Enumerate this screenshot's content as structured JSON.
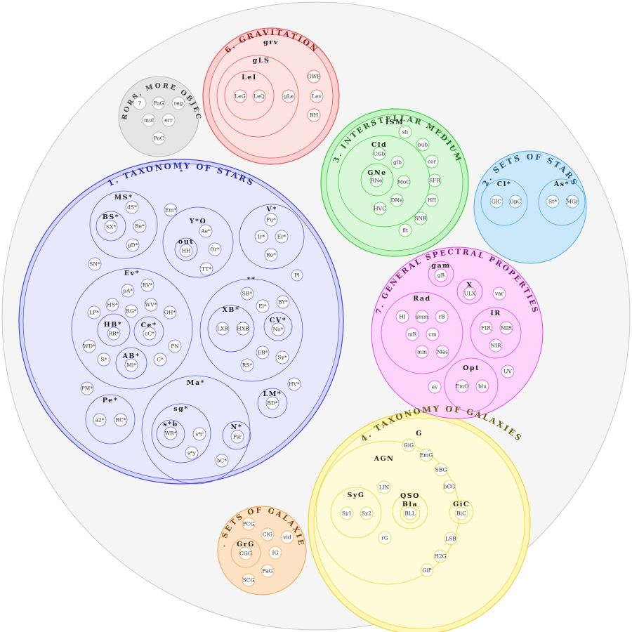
{
  "groups": [
    {
      "key": "stars",
      "title": "1. TAXONOMY OF STARS",
      "root": "*",
      "color": "#3b3bd6",
      "fill": "#e6e6fb"
    },
    {
      "key": "setstars",
      "title": "2. SETS OF STARS",
      "color": "#4ca8e8",
      "fill": "#cde9fb"
    },
    {
      "key": "ism",
      "title": "3. INTERSTELLAR MEDIUM",
      "root": "ISM",
      "color": "#3dcc3d",
      "fill": "#d8f8d8"
    },
    {
      "key": "gal",
      "title": "4. TAXONOMY OF GALAXIES",
      "root": "G",
      "color": "#e8d83a",
      "fill": "#fffad0"
    },
    {
      "key": "setgal",
      "title": "5. SETS OF GALAXIES",
      "color": "#eea050",
      "fill": "#fde6cc"
    },
    {
      "key": "grav",
      "title": "6. GRAVITATION",
      "root": "grv",
      "color": "#e25a5a",
      "fill": "#fde0e0"
    },
    {
      "key": "spec",
      "title": "7. GENERAL SPECTRAL PROPERTIES",
      "color": "#dd4ddd",
      "fill": "#fbd7fb"
    },
    {
      "key": "err",
      "title": "ERRORS, MORE OBJECTS",
      "color": "#999999",
      "fill": "#e8e8e8"
    }
  ],
  "subgroups": {
    "MS": "MS*",
    "YO": "Y*O",
    "V": "V*",
    "Ev": "Ev*",
    "DoubleStar": "**",
    "Ma": "Ma*",
    "Pe": "Pe*",
    "BS": "BS*",
    "out": "out",
    "HB": "HB*",
    "Ce": "Ce*",
    "AB": "AB*",
    "XB": "XB*",
    "CV": "CV*",
    "LM": "LM*",
    "sg": "sg*",
    "sb": "s*b",
    "N": "N*",
    "Cld": "Cld",
    "GNe": "GNe",
    "Cl": "Cl*",
    "As": "As*",
    "gLS": "gLS",
    "Le": "LeI",
    "gam": "gam",
    "X": "X",
    "Rad": "Rad",
    "IR": "IR",
    "Opt": "Opt",
    "AGN": "AGN",
    "SyG": "SyG",
    "QSO": "QSO",
    "Bla": "Bla",
    "GiC": "GiC",
    "GrG": "GrG"
  },
  "leaves": {
    "dS": "dS*",
    "SX": "SX*",
    "Be": "Be*",
    "gD": "gD*",
    "Em": "Em*",
    "Ae": "Ae*",
    "Or": "Or*",
    "HH": "HH",
    "TT": "TT*",
    "Pu": "Pu*",
    "Ir": "Ir*",
    "Er": "Er*",
    "Ro": "Ro*",
    "SN": "SN*",
    "Pl": "Pl",
    "pA": "pA*",
    "RV": "RV*",
    "HS": "HS*",
    "RG": "RG*",
    "WV": "WV*",
    "LP": "LP*",
    "OH": "OH*",
    "RR": "RR*",
    "cC": "cC*",
    "WD": "WD*",
    "PN": "PN",
    "S": "S*",
    "Mi": "Mi*",
    "C": "C*",
    "SB": "SB*",
    "BY": "BY*",
    "El": "El*",
    "LXB": "LXB",
    "HXB": "HXB",
    "No": "No*",
    "EB": "EB*",
    "RS": "RS*",
    "Sy": "Sy*",
    "PM": "PM*",
    "HV": "HV*",
    "BD": "BD*",
    "a2": "a2*",
    "RC": "RC*",
    "WR": "WR*",
    "sr": "s*r",
    "sy": "s*y",
    "Psr": "Psr",
    "bC": "bC*",
    "GlC": "GlC",
    "OpC": "OpC",
    "St": "St*",
    "MGr": "MGr",
    "sh": "sh",
    "bub": "bub",
    "CGb": "CGb",
    "glb": "glb",
    "cor": "cor",
    "RNe": "RNe",
    "MoC": "MoC",
    "SFR": "SFR",
    "DNe": "DNe",
    "HII": "HII",
    "HVC": "HVC",
    "SNR": "SNR",
    "flt": "flt",
    "GiG": "GiG",
    "EmG": "EmG",
    "SBG": "SBG",
    "LIN": "LIN",
    "bCG": "bCG",
    "Sy1": "Sy1",
    "Sy2": "Sy2",
    "BLL": "BLL",
    "BiC": "BiC",
    "rG": "rG",
    "LSB": "LSB",
    "H2G": "H2G",
    "GiP": "GiP",
    "PCG": "PCG",
    "ClG": "ClG",
    "vid": "vid",
    "CGG": "CGG",
    "IG": "IG",
    "PaG": "PaG",
    "SCG": "SCG",
    "LeG": "LeG",
    "LeQ": "LeQ",
    "gLe": "gLe",
    "GWE": "GWE",
    "Lev": "Lev",
    "BH": "BH",
    "gB": "gB",
    "ULX": "ULX",
    "var": "var",
    "HI": "HI",
    "smm": "smm",
    "rB": "rB",
    "mR": "mR",
    "cm": "cm",
    "mm": "mm",
    "Mas": "Mas",
    "FIR": "FIR",
    "MIR": "MIR",
    "NIR": "NIR",
    "ev": "ev",
    "EmO": "EmO",
    "blu": "blu",
    "UV": "UV",
    "q": "?",
    "PoG": "PoG",
    "reg": "reg",
    "mul": "mul",
    "err": "err",
    "PoC": "PoC"
  }
}
